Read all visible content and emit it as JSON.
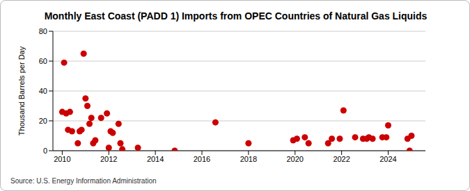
{
  "chart_data": {
    "type": "scatter",
    "title": "Monthly East Coast (PADD 1) Imports from OPEC Countries of Natural Gas Liquids",
    "y_label": "Thousand Barrels per Day",
    "source": "Source: U.S. Energy Information Administration",
    "x": [
      2010.0,
      2010.08,
      2010.17,
      2010.25,
      2010.33,
      2010.42,
      2010.67,
      2010.75,
      2010.83,
      2010.92,
      2011.0,
      2011.08,
      2011.17,
      2011.25,
      2011.33,
      2011.42,
      2011.67,
      2011.92,
      2012.0,
      2012.08,
      2012.17,
      2012.42,
      2012.5,
      2012.58,
      2013.25,
      2014.83,
      2016.58,
      2018.0,
      2019.92,
      2020.08,
      2020.42,
      2020.58,
      2021.42,
      2021.58,
      2021.92,
      2022.08,
      2022.58,
      2022.92,
      2023.08,
      2023.17,
      2023.33,
      2023.75,
      2023.92,
      2024.0,
      2024.83,
      2024.92,
      2025.0
    ],
    "values": [
      26,
      59,
      25,
      14,
      26,
      13,
      5,
      13,
      14,
      65,
      35,
      30,
      18,
      22,
      5,
      7,
      22,
      25,
      2,
      13,
      12,
      18,
      5,
      1,
      2,
      0,
      19,
      5,
      7,
      8,
      9,
      5,
      5,
      8,
      8,
      27,
      9,
      8,
      8,
      9,
      8,
      9,
      9,
      17,
      8,
      0,
      10
    ],
    "color": "#cc0000",
    "marker": "circle",
    "xlim": [
      2009.6,
      2025.6
    ],
    "xticks": [
      2010,
      2012,
      2014,
      2016,
      2018,
      2020,
      2022,
      2024
    ],
    "ylim": [
      0,
      80
    ],
    "yticks": [
      0,
      20,
      40,
      60,
      80
    ],
    "grid": true
  }
}
